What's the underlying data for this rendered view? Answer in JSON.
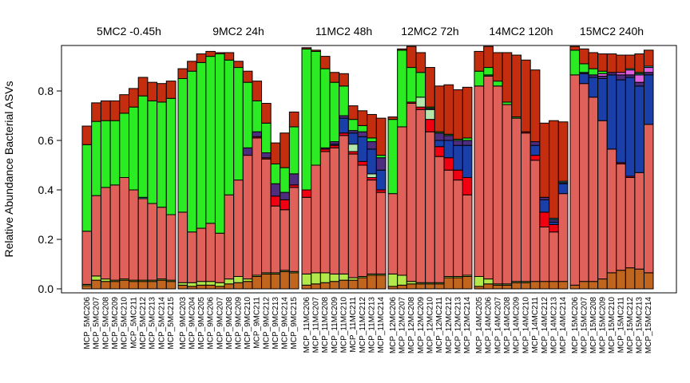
{
  "chart_data": {
    "type": "bar",
    "stacked": true,
    "ylabel": "Relative Abundance Bacterial ASVs",
    "ylim": [
      0,
      0.98
    ],
    "yticks": [
      "0.0",
      "0.2",
      "0.4",
      "0.6",
      "0.8"
    ],
    "series_colors": [
      "#C0651E",
      "#B3E84A",
      "#E0605A",
      "#F00010",
      "#B5E5AB",
      "#1A3FA8",
      "#4E2D7E",
      "#E060E0",
      "#2EE6E6",
      "#2B8A2B",
      "#2BEB22",
      "#C42E0E"
    ],
    "groups": [
      {
        "title": "5MC2 -0.45h",
        "samples": [
          "MCP_5MC206",
          "MCP_5MC207",
          "MCP_5MC208",
          "MCP_5MC209",
          "MCP_5MC210",
          "MCP_5MC211",
          "MCP_5MC212",
          "MCP_5MC213",
          "MCP_5MC214",
          "MCP_5MC215"
        ],
        "stacks": [
          [
            0.013,
            0.005,
            0.215,
            0,
            0,
            0,
            0,
            0,
            0,
            0,
            0.35,
            0.075
          ],
          [
            0.035,
            0.017,
            0.325,
            0,
            0,
            0,
            0,
            0,
            0,
            0,
            0.3,
            0.075
          ],
          [
            0.03,
            0.01,
            0.37,
            0,
            0,
            0,
            0,
            0,
            0,
            0,
            0.27,
            0.08
          ],
          [
            0.03,
            0.005,
            0.385,
            0,
            0,
            0,
            0,
            0,
            0,
            0,
            0.26,
            0.08
          ],
          [
            0.035,
            0.005,
            0.41,
            0,
            0,
            0,
            0,
            0,
            0,
            0,
            0.26,
            0.075
          ],
          [
            0.03,
            0.005,
            0.365,
            0,
            0,
            0,
            0,
            0,
            0,
            0,
            0.335,
            0.075
          ],
          [
            0.03,
            0.005,
            0.33,
            0,
            0,
            0,
            0,
            0,
            0.005,
            0,
            0.41,
            0.075
          ],
          [
            0.03,
            0.005,
            0.31,
            0,
            0,
            0,
            0,
            0,
            0,
            0,
            0.415,
            0.075
          ],
          [
            0.035,
            0.005,
            0.29,
            0,
            0,
            0,
            0,
            0,
            0,
            0,
            0.425,
            0.075
          ],
          [
            0.03,
            0.005,
            0.265,
            0,
            0,
            0,
            0,
            0,
            0,
            0,
            0.47,
            0.07
          ]
        ]
      },
      {
        "title": "9MC2 24h",
        "samples": [
          "MCP_9MC203",
          "MCP_9MC204",
          "MCP_9MC205",
          "MCP_9MC206",
          "MCP_9MC207",
          "MCP_9MC208",
          "MCP_9MC209",
          "MCP_9MC210",
          "MCP_9MC211",
          "MCP_9MC212",
          "MCP_9MC213",
          "MCP_9MC214",
          "MCP_9MC215"
        ],
        "stacks": [
          [
            0.015,
            0.01,
            0.285,
            0,
            0,
            0,
            0,
            0,
            0,
            0,
            0.54,
            0.04
          ],
          [
            0.01,
            0.015,
            0.205,
            0,
            0,
            0,
            0,
            0,
            0,
            0,
            0.65,
            0.04
          ],
          [
            0.015,
            0.015,
            0.215,
            0,
            0,
            0,
            0,
            0,
            0,
            0,
            0.67,
            0.035
          ],
          [
            0.015,
            0.015,
            0.235,
            0,
            0,
            0,
            0,
            0,
            0,
            0,
            0.675,
            0.02
          ],
          [
            0.01,
            0.015,
            0.2,
            0,
            0,
            0,
            0,
            0,
            0,
            0,
            0.725,
            0.005
          ],
          [
            0.02,
            0.02,
            0.34,
            0,
            0,
            0,
            0,
            0,
            0,
            0,
            0.545,
            0.03
          ],
          [
            0.025,
            0.025,
            0.39,
            0,
            0,
            0,
            0,
            0,
            0,
            0,
            0.455,
            0.025
          ],
          [
            0.03,
            0.01,
            0.5,
            0,
            0,
            0,
            0.03,
            0,
            0,
            0,
            0.265,
            0.045
          ],
          [
            0.05,
            0.005,
            0.555,
            0.005,
            0,
            0,
            0.02,
            0,
            0,
            0,
            0.125,
            0.08
          ],
          [
            0.06,
            0.005,
            0.46,
            0.005,
            0,
            0,
            0.02,
            0,
            0,
            0,
            0.12,
            0.08
          ],
          [
            0.06,
            0.005,
            0.27,
            0.04,
            0,
            0,
            0.05,
            0,
            0,
            0,
            0.08,
            0.085
          ],
          [
            0.07,
            0.005,
            0.245,
            0.04,
            0,
            0,
            0.03,
            0,
            0,
            0,
            0.1,
            0.14
          ],
          [
            0.065,
            0.005,
            0.34,
            0.01,
            0,
            0,
            0.045,
            0,
            0,
            0,
            0.19,
            0.06
          ]
        ]
      },
      {
        "title": "11MC2 48h",
        "samples": [
          "MCP_11MC206",
          "MCP_11MC207",
          "MCP_11MC208",
          "MCP_11MC209",
          "MCP_11MC210",
          "MCP_11MC211",
          "MCP_11MC212",
          "MCP_11MC213",
          "MCP_11MC214"
        ],
        "stacks": [
          [
            0.015,
            0.045,
            0.31,
            0.03,
            0,
            0,
            0,
            0,
            0,
            0,
            0.57,
            0.005
          ],
          [
            0.02,
            0.045,
            0.435,
            0,
            0,
            0,
            0,
            0,
            0,
            0,
            0.46,
            0.005
          ],
          [
            0.025,
            0.04,
            0.49,
            0.01,
            0,
            0,
            0.005,
            0,
            0,
            0,
            0.32,
            0.05
          ],
          [
            0.03,
            0.03,
            0.51,
            0.01,
            0,
            0.005,
            0.01,
            0,
            0,
            0,
            0.24,
            0.04
          ],
          [
            0.035,
            0.025,
            0.56,
            0.01,
            0,
            0.06,
            0.01,
            0,
            0,
            0,
            0.12,
            0.05
          ],
          [
            0.035,
            0.01,
            0.5,
            0.01,
            0.03,
            0.045,
            0.01,
            0,
            0,
            0,
            0.045,
            0.055
          ],
          [
            0.045,
            0.005,
            0.45,
            0.015,
            0,
            0.1,
            0.02,
            0,
            0,
            0,
            0.025,
            0.06
          ],
          [
            0.055,
            0.005,
            0.38,
            0.01,
            0.015,
            0.1,
            0.03,
            0,
            0,
            0,
            0.015,
            0.095
          ],
          [
            0.055,
            0.005,
            0.33,
            0.01,
            0,
            0.08,
            0.05,
            0,
            0,
            0,
            0.01,
            0.15
          ]
        ]
      },
      {
        "title": "12MC2 72h",
        "samples": [
          "MCP_12MC206",
          "MCP_12MC207",
          "MCP_12MC208",
          "MCP_12MC209",
          "MCP_12MC210",
          "MCP_12MC211",
          "MCP_12MC212",
          "MCP_12MC213",
          "MCP_12MC214"
        ],
        "stacks": [
          [
            0.01,
            0.05,
            0.325,
            0,
            0,
            0,
            0,
            0,
            0,
            0,
            0.3,
            0.01
          ],
          [
            0.015,
            0.04,
            0.6,
            0,
            0,
            0,
            0,
            0,
            0,
            0,
            0.31,
            0.005
          ],
          [
            0.02,
            0.01,
            0.72,
            0.005,
            0,
            0,
            0,
            0,
            0,
            0,
            0.14,
            0.12
          ],
          [
            0.02,
            0.005,
            0.7,
            0.01,
            0.04,
            0,
            0,
            0,
            0,
            0,
            0.1,
            0.08
          ],
          [
            0.02,
            0.005,
            0.61,
            0.05,
            0.04,
            0,
            0.005,
            0,
            0,
            0,
            0.005,
            0.16
          ],
          [
            0.02,
            0.005,
            0.51,
            0.04,
            0,
            0.025,
            0.03,
            0,
            0,
            0,
            0.005,
            0.185
          ],
          [
            0.045,
            0.005,
            0.43,
            0.05,
            0,
            0.07,
            0.02,
            0,
            0,
            0,
            0.005,
            0.2
          ],
          [
            0.045,
            0.005,
            0.39,
            0.04,
            0,
            0.1,
            0.02,
            0,
            0,
            0,
            0.005,
            0.2
          ],
          [
            0.05,
            0.005,
            0.325,
            0.07,
            0,
            0.13,
            0.02,
            0,
            0,
            0,
            0.01,
            0.205
          ]
        ]
      },
      {
        "title": "14MC2 120h",
        "samples": [
          "MCP_14MC205",
          "MCP_14MC206",
          "MCP_14MC207",
          "MCP_14MC208",
          "MCP_14MC209",
          "MCP_14MC210",
          "MCP_14MC211",
          "MCP_14MC212",
          "MCP_14MC213",
          "MCP_14MC214"
        ],
        "stacks": [
          [
            0.01,
            0.04,
            0.77,
            0,
            0,
            0,
            0,
            0,
            0,
            0,
            0.06,
            0.08
          ],
          [
            0.02,
            0.02,
            0.82,
            0,
            0,
            0,
            0,
            0,
            0,
            0.005,
            0.03,
            0.085
          ],
          [
            0.015,
            0.005,
            0.8,
            0,
            0,
            0,
            0,
            0,
            0,
            0,
            0.02,
            0.115
          ],
          [
            0.015,
            0.005,
            0.725,
            0,
            0,
            0,
            0,
            0,
            0,
            0,
            0.01,
            0.2
          ],
          [
            0.025,
            0.005,
            0.66,
            0,
            0,
            0,
            0,
            0,
            0,
            0,
            0.005,
            0.25
          ],
          [
            0.025,
            0.005,
            0.6,
            0.005,
            0,
            0,
            0,
            0,
            0,
            0,
            0,
            0.29
          ],
          [
            0.03,
            0,
            0.49,
            0.02,
            0,
            0.04,
            0.015,
            0,
            0,
            0,
            0,
            0.29
          ],
          [
            0.03,
            0,
            0.22,
            0.06,
            0,
            0.05,
            0.01,
            0,
            0,
            0,
            0,
            0.3
          ],
          [
            0.03,
            0,
            0.2,
            0.03,
            0,
            0.01,
            0.01,
            0,
            0.005,
            0,
            0,
            0.395
          ],
          [
            0.03,
            0,
            0.355,
            0,
            0,
            0.04,
            0.005,
            0,
            0.005,
            0,
            0,
            0.24
          ]
        ]
      },
      {
        "title": "15MC2 240h",
        "samples": [
          "MCP_15MC206",
          "MCP_15MC207",
          "MCP_15MC208",
          "MCP_15MC209",
          "MCP_15MC210",
          "MCP_15MC211",
          "MCP_15MC212",
          "MCP_15MC213",
          "MCP_15MC214"
        ],
        "stacks": [
          [
            0.015,
            0,
            0.85,
            0,
            0,
            0,
            0,
            0,
            0,
            0,
            0.1,
            0.015
          ],
          [
            0.03,
            0,
            0.8,
            0,
            0,
            0.04,
            0.005,
            0,
            0,
            0,
            0.035,
            0.06
          ],
          [
            0.03,
            0,
            0.745,
            0,
            0,
            0.08,
            0.01,
            0,
            0,
            0,
            0.025,
            0.065
          ],
          [
            0.04,
            0,
            0.64,
            0,
            0,
            0.17,
            0.01,
            0.01,
            0,
            0,
            0.01,
            0.07
          ],
          [
            0.065,
            0,
            0.5,
            0,
            0,
            0.3,
            0.01,
            0,
            0,
            0,
            0,
            0.075
          ],
          [
            0.075,
            0,
            0.43,
            0.005,
            0,
            0.335,
            0.02,
            0.01,
            0,
            0,
            0,
            0.07
          ],
          [
            0.085,
            0,
            0.365,
            0.005,
            0,
            0.4,
            0.01,
            0.02,
            0.005,
            0,
            0,
            0.055
          ],
          [
            0.08,
            0,
            0.39,
            0,
            0,
            0.35,
            0.015,
            0.03,
            0.005,
            0,
            0.005,
            0.075
          ],
          [
            0.065,
            0,
            0.6,
            0,
            0,
            0.2,
            0.01,
            0.02,
            0.005,
            0,
            0,
            0.065
          ]
        ]
      }
    ]
  }
}
